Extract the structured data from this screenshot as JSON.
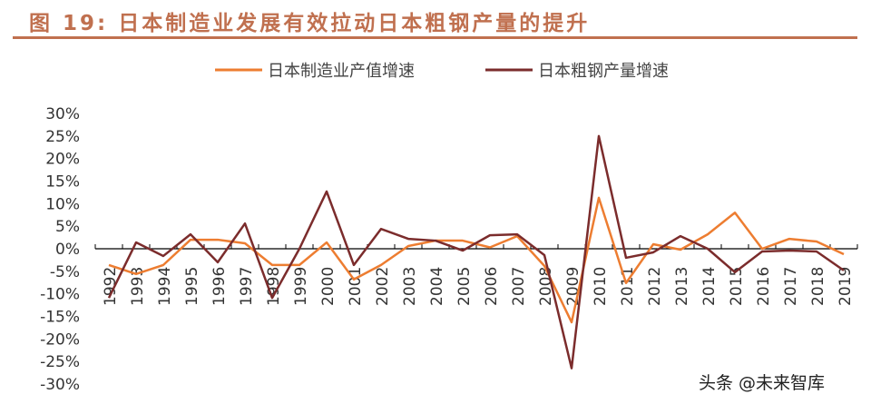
{
  "title": "图 19:  日本制造业发展有效拉动日本粗钢产量的提升",
  "watermark": "头条 @未来智库",
  "chart_data": {
    "type": "line",
    "title": "图 19:  日本制造业发展有效拉动日本粗钢产量的提升",
    "xlabel": "",
    "ylabel": "",
    "ylim": [
      -30,
      30
    ],
    "yticks": [
      "30%",
      "25%",
      "20%",
      "15%",
      "10%",
      "5%",
      "0%",
      "-5%",
      "-10%",
      "-15%",
      "-20%",
      "-25%",
      "-30%"
    ],
    "ytick_values": [
      30,
      25,
      20,
      15,
      10,
      5,
      0,
      -5,
      -10,
      -15,
      -20,
      -25,
      -30
    ],
    "categories": [
      "1992",
      "1993",
      "1994",
      "1995",
      "1996",
      "1997",
      "1998",
      "1999",
      "2000",
      "2001",
      "2002",
      "2003",
      "2004",
      "2005",
      "2006",
      "2007",
      "2008",
      "2009",
      "2010",
      "2011",
      "2012",
      "2013",
      "2014",
      "2015",
      "2016",
      "2017",
      "2018",
      "2019"
    ],
    "legend_position": "top",
    "grid": false,
    "series": [
      {
        "name": "日本制造业产值增速",
        "color": "#ed7d31",
        "values": [
          -3.6,
          -5.6,
          -3.6,
          2.0,
          2.0,
          1.2,
          -3.6,
          -3.6,
          1.4,
          -6.8,
          -3.6,
          0.6,
          1.8,
          1.8,
          0.3,
          2.8,
          -3.8,
          -16.3,
          11.3,
          -7.6,
          1.0,
          -0.2,
          3.2,
          8.0,
          0.0,
          2.2,
          1.6,
          -1.2
        ]
      },
      {
        "name": "日本粗钢产量增速",
        "color": "#7b2c2c",
        "values": [
          -10.9,
          1.4,
          -1.6,
          3.2,
          -3.0,
          5.6,
          -10.9,
          0.0,
          12.7,
          -3.6,
          4.4,
          2.2,
          1.8,
          -0.4,
          3.0,
          3.2,
          -1.4,
          -26.5,
          25.0,
          -2.0,
          -0.8,
          2.8,
          0.0,
          -5.2,
          -0.6,
          -0.4,
          -0.6,
          -4.8
        ]
      }
    ]
  }
}
